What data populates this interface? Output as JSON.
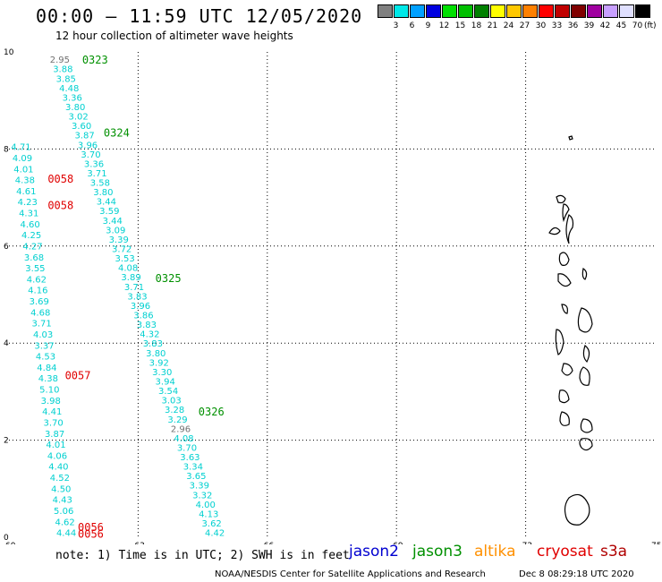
{
  "header": {
    "title": "00:00 – 11:59 UTC 12/05/2020",
    "subtitle": "12 hour collection of altimeter wave heights"
  },
  "colorbar": {
    "colors": [
      "#808080",
      "#00e8e8",
      "#00a0ff",
      "#0000e0",
      "#00e000",
      "#00c000",
      "#008000",
      "#ffff00",
      "#ffc800",
      "#ff8000",
      "#ff0000",
      "#c00000",
      "#800000",
      "#a000a0",
      "#c8a0ff",
      "#e0e0ff",
      "#000000"
    ],
    "labels": [
      "",
      "3",
      "6",
      "9",
      "12",
      "15",
      "18",
      "21",
      "24",
      "27",
      "30",
      "33",
      "36",
      "39",
      "42",
      "45",
      "70"
    ],
    "unit": "(ft)"
  },
  "axes": {
    "x_ticks": [
      "60",
      "63",
      "66",
      "69",
      "72",
      "75"
    ],
    "y_ticks": [
      "0",
      "2",
      "4",
      "6",
      "8",
      "10"
    ],
    "x_range": [
      60,
      75
    ],
    "y_range": [
      0,
      10
    ]
  },
  "passes": [
    {
      "label": "0323",
      "satellite": "jason3",
      "lon": 61.7,
      "lat": 9.85
    },
    {
      "label": "0324",
      "satellite": "jason3",
      "lon": 62.2,
      "lat": 8.35
    },
    {
      "label": "0058",
      "satellite": "cryosat",
      "lon": 60.9,
      "lat": 7.4
    },
    {
      "label": "0058",
      "satellite": "cryosat",
      "lon": 60.9,
      "lat": 6.85
    },
    {
      "label": "0325",
      "satellite": "jason3",
      "lon": 63.4,
      "lat": 5.35
    },
    {
      "label": "0057",
      "satellite": "cryosat",
      "lon": 61.3,
      "lat": 3.35
    },
    {
      "label": "0326",
      "satellite": "jason3",
      "lon": 64.4,
      "lat": 2.6
    },
    {
      "label": "0056",
      "satellite": "cryosat",
      "lon": 61.6,
      "lat": 0.22
    },
    {
      "label": "0056",
      "satellite": "cryosat",
      "lon": 61.6,
      "lat": 0.08
    }
  ],
  "jason3_track": [
    "2.95",
    "3.88",
    "3.85",
    "4.48",
    "3.36",
    "3.80",
    "3.02",
    "3.60",
    "3.87",
    "3.96",
    "3.70",
    "3.36",
    "3.71",
    "3.58",
    "3.80",
    "3.44",
    "3.59",
    "3.44",
    "3.09",
    "3.39",
    "3.72",
    "3.53",
    "4.08",
    "3.89",
    "3.71",
    "3.83",
    "3.96",
    "3.86",
    "3.83",
    "4.32",
    "3.83",
    "3.80",
    "3.92",
    "3.30",
    "3.94",
    "3.54",
    "3.03",
    "3.28",
    "3.29",
    "2.96",
    "4.08",
    "3.70",
    "3.63",
    "3.34",
    "3.65",
    "3.39",
    "3.32",
    "4.00",
    "4.13",
    "3.62",
    "4.42"
  ],
  "cryosat_track": [
    "4.71",
    "4.09",
    "4.01",
    "4.38",
    "4.61",
    "4.23",
    "4.31",
    "4.60",
    "4.25",
    "4.27",
    "3.68",
    "3.55",
    "4.62",
    "4.16",
    "3.69",
    "4.68",
    "3.71",
    "4.03",
    "3.37",
    "4.53",
    "4.84",
    "4.38",
    "5.10",
    "3.98",
    "4.41",
    "3.70",
    "3.87",
    "4.01",
    "4.06",
    "4.40",
    "4.52",
    "4.50",
    "4.43",
    "5.06",
    "4.62",
    "4.44"
  ],
  "legend": [
    {
      "name": "jason2",
      "color": "#0000d0"
    },
    {
      "name": "jason3",
      "color": "#009000"
    },
    {
      "name": "altika",
      "color": "#ff9000"
    },
    {
      "name": "cryosat",
      "color": "#e00000"
    },
    {
      "name": "s3a",
      "color": "#b00000"
    }
  ],
  "note": "note: 1) Time is in UTC; 2) SWH is in feet",
  "footer": {
    "credit": "NOAA/NESDIS Center for Satellite Applications and Research",
    "timestamp": "Dec  8 08:29:18 UTC 2020"
  }
}
